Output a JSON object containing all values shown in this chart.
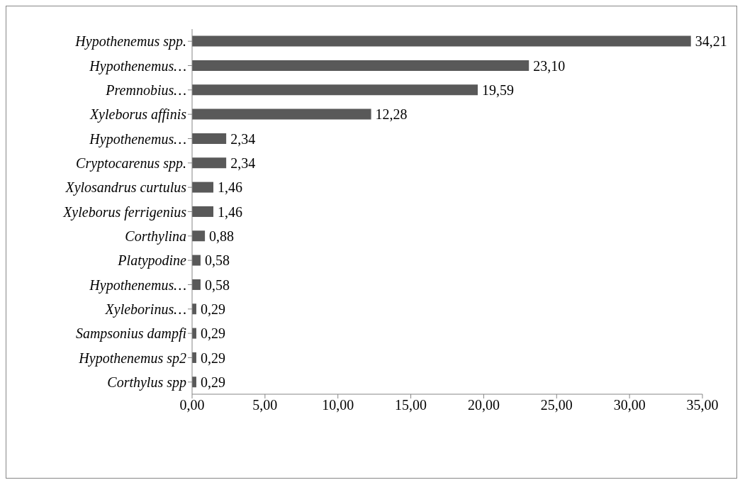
{
  "chart_data": {
    "type": "bar",
    "orientation": "horizontal",
    "categories": [
      "Hypothenemus spp.",
      "Hypothenemus…",
      "Premnobius…",
      "Xyleborus affinis",
      "Hypothenemus…",
      "Cryptocarenus spp.",
      "Xylosandrus curtulus",
      "Xyleborus ferrigenius",
      "Corthylina",
      "Platypodine",
      "Hypothenemus…",
      "Xyleborinus…",
      "Sampsonius dampfi",
      "Hypothenemus sp2",
      "Corthylus spp"
    ],
    "values": [
      34.21,
      23.1,
      19.59,
      12.28,
      2.34,
      2.34,
      1.46,
      1.46,
      0.88,
      0.58,
      0.58,
      0.29,
      0.29,
      0.29,
      0.29
    ],
    "value_labels": [
      "34,21",
      "23,10",
      "19,59",
      "12,28",
      "2,34",
      "2,34",
      "1,46",
      "1,46",
      "0,88",
      "0,58",
      "0,58",
      "0,29",
      "0,29",
      "0,29",
      "0,29"
    ],
    "color": "#595959",
    "xlim": [
      0,
      35
    ],
    "xticks": [
      {
        "value": 0,
        "label": "0,00"
      },
      {
        "value": 5,
        "label": "5,00"
      },
      {
        "value": 10,
        "label": "10,00"
      },
      {
        "value": 15,
        "label": "15,00"
      },
      {
        "value": 20,
        "label": "20,00"
      },
      {
        "value": 25,
        "label": "25,00"
      },
      {
        "value": 30,
        "label": "30,00"
      },
      {
        "value": 35,
        "label": "35,00"
      }
    ],
    "grid": false,
    "legend": false
  }
}
